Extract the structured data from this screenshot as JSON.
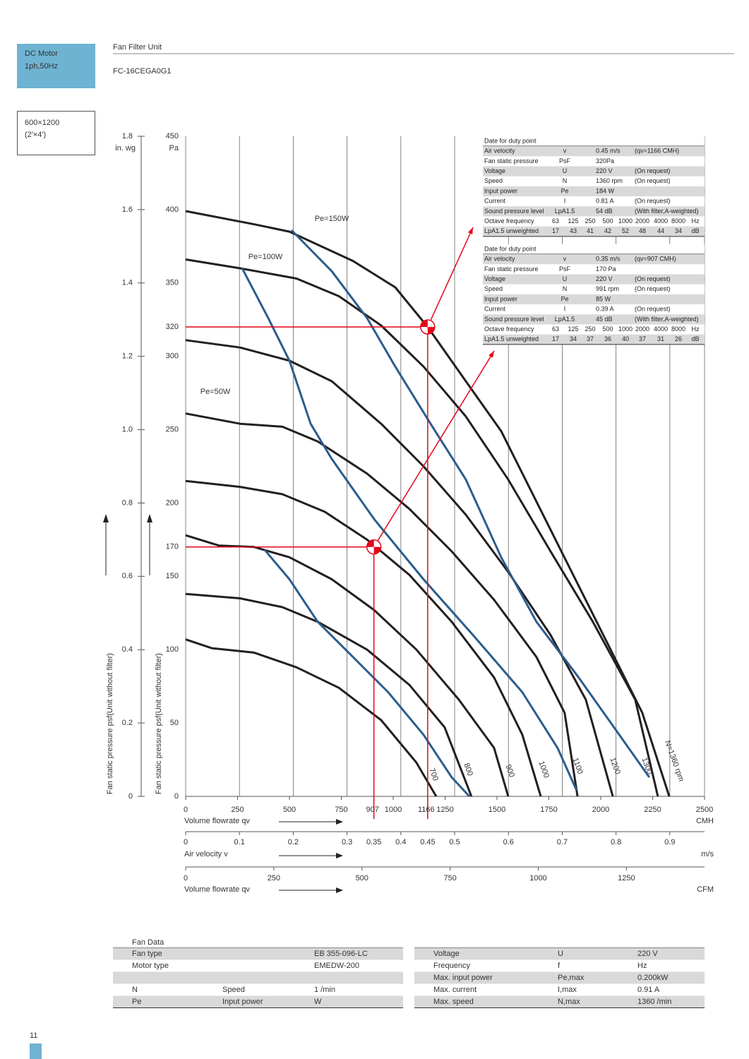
{
  "header": {
    "badge": [
      "DC Motor",
      "1ph,50Hz"
    ],
    "category": "Fan Filter Unit",
    "model": "FC-16CEGA0G1",
    "size": [
      "600×1200",
      "(2'×4')"
    ]
  },
  "chart_data": {
    "type": "line",
    "x_label": "Volume flowrate qv",
    "x_unit": "CMH",
    "xlim": [
      0,
      2500
    ],
    "xticks": [
      0,
      250,
      500,
      750,
      1000,
      1250,
      1500,
      1750,
      2000,
      2250,
      2500
    ],
    "x2_label": "Air velocity v",
    "x2_unit": "m/s",
    "x2lim": [
      0,
      0.9645
    ],
    "x2ticks": [
      0,
      0.1,
      0.2,
      0.3,
      0.4,
      0.5,
      0.6,
      0.7,
      0.8,
      0.9
    ],
    "x3_label": "Volume flowrate qv",
    "x3_unit": "CFM",
    "x3lim": [
      0,
      1471.5
    ],
    "x3ticks": [
      0,
      250,
      500,
      750,
      1000,
      1250
    ],
    "y_label": "Fan static pressure psf(Unit without filter)",
    "y_unit": "Pa",
    "ylim": [
      0,
      450
    ],
    "yticks": [
      0,
      50,
      100,
      150,
      200,
      250,
      300,
      350,
      400,
      450
    ],
    "y2_label": "Fan static pressure psf(Unit without filter)",
    "y2_unit": "in. wg",
    "y2lim": [
      0,
      1.8
    ],
    "y2ticks": [
      0,
      0.2,
      0.4,
      0.6,
      0.8,
      {
        "value": 1,
        "label": "1.0"
      },
      1.2,
      1.4,
      1.6,
      1.8
    ],
    "grid": true,
    "series": [
      {
        "name": "700",
        "color": "#231f20",
        "x": [
          0,
          126,
          330,
          534,
          738,
          942,
          1112,
          1207
        ],
        "values": [
          107,
          101,
          98,
          88,
          74,
          52,
          23,
          0
        ]
      },
      {
        "name": "800",
        "color": "#231f20",
        "x": [
          0,
          262,
          466,
          636,
          874,
          1078,
          1248,
          1377
        ],
        "values": [
          138,
          135,
          129,
          119,
          100,
          76,
          47,
          0
        ]
      },
      {
        "name": "900",
        "color": "#231f20",
        "x": [
          0,
          160,
          330,
          500,
          704,
          908,
          1112,
          1316,
          1486,
          1554
        ],
        "values": [
          178,
          171,
          170,
          163,
          148,
          127,
          100,
          66,
          33,
          0
        ]
      },
      {
        "name": "1000",
        "color": "#231f20",
        "x": [
          0,
          262,
          466,
          670,
          874,
          1078,
          1282,
          1486,
          1622,
          1711
        ],
        "values": [
          215,
          211,
          206,
          194,
          175,
          151,
          119,
          81,
          42,
          0
        ]
      },
      {
        "name": "1100",
        "color": "#231f20",
        "x": [
          0,
          262,
          466,
          636,
          874,
          1078,
          1282,
          1486,
          1690,
          1826,
          1888
        ],
        "values": [
          261,
          254,
          252,
          242,
          220,
          196,
          167,
          134,
          95,
          57,
          0
        ]
      },
      {
        "name": "1200",
        "color": "#231f20",
        "x": [
          0,
          262,
          500,
          704,
          942,
          1146,
          1350,
          1554,
          1758,
          1928,
          2058
        ],
        "values": [
          311,
          306,
          297,
          283,
          254,
          225,
          192,
          153,
          110,
          66,
          0
        ]
      },
      {
        "name": "1300",
        "color": "#231f20",
        "x": [
          0,
          262,
          534,
          738,
          942,
          1146,
          1350,
          1554,
          1758,
          1962,
          2166,
          2275
        ],
        "values": [
          366,
          360,
          353,
          341,
          321,
          293,
          259,
          216,
          167,
          119,
          66,
          0
        ]
      },
      {
        "name": "N=1360 rpm",
        "color": "#231f20",
        "x": [
          0,
          330,
          500,
          806,
          1010,
          1166,
          1350,
          1520,
          1690,
          1860,
          2030,
          2200,
          2330
        ],
        "values": [
          399,
          390,
          385,
          365,
          347,
          320,
          283,
          249,
          201,
          153,
          105,
          57,
          0
        ]
      },
      {
        "name": "Pe=150W",
        "color": "#2c5d8c",
        "x": [
          510,
          704,
          874,
          1010,
          1180,
          1350,
          1520,
          1690,
          1894,
          2064,
          2234
        ],
        "values": [
          386,
          358,
          326,
          293,
          254,
          216,
          163,
          119,
          81,
          47,
          13
        ]
      },
      {
        "name": "Pe=100W",
        "color": "#2c5d8c",
        "x": [
          272,
          398,
          500,
          602,
          704,
          908,
          1146,
          1384,
          1622,
          1792,
          1884
        ],
        "values": [
          360,
          326,
          297,
          254,
          230,
          189,
          148,
          110,
          71,
          33,
          4
        ]
      },
      {
        "name": "Pe=50W",
        "color": "#2c5d8c",
        "x": [
          381,
          500,
          636,
          806,
          976,
          1146,
          1282,
          1367
        ],
        "values": [
          168,
          148,
          119,
          95,
          71,
          42,
          13,
          0
        ]
      }
    ],
    "duty_points": {
      "color": "#e3061a",
      "points": [
        {
          "x": 1166,
          "y": 320,
          "velocity": 0.45
        },
        {
          "x": 907,
          "y": 170,
          "velocity": 0.35
        }
      ]
    }
  },
  "duty_tables": [
    {
      "title": "Date for duty point",
      "rows": [
        [
          "Air velocity",
          "v",
          "0.45 m/s",
          "(qv=1166 CMH)"
        ],
        [
          "Fan static pressure",
          "PsF",
          "320Pa"
        ],
        [
          "Voltage",
          "U",
          "220 V",
          "(On request)"
        ],
        [
          "Speed",
          "N",
          "1360 rpm",
          "(On request)"
        ],
        [
          "Input power",
          "Pe",
          "184 W"
        ],
        [
          "Current",
          "I",
          "0.81 A",
          "(On request)"
        ],
        [
          "Sound pressure level",
          "LpA1.5",
          "54 dB",
          "(With filter,A-weighted)"
        ]
      ],
      "octave_rows": [
        [
          "Octave frequency",
          "63",
          "125",
          "250",
          "500",
          "1000",
          "2000",
          "4000",
          "8000",
          "Hz"
        ],
        [
          "LpA1.5 unweighted",
          "17",
          "43",
          "41",
          "42",
          "52",
          "48",
          "44",
          "34",
          "dB"
        ]
      ]
    },
    {
      "title": "Date for duty point",
      "rows": [
        [
          "Air velocity",
          "v",
          "0.35 m/s",
          "(qv=907 CMH)"
        ],
        [
          "Fan static pressure",
          "PsF",
          "170 Pa"
        ],
        [
          "Voltage",
          "U",
          "220 V",
          "(On request)"
        ],
        [
          "Speed",
          "N",
          "991 rpm",
          "(On request)"
        ],
        [
          "Input power",
          "Pe",
          "85 W"
        ],
        [
          "Current",
          "I",
          "0.39 A",
          "(On request)"
        ],
        [
          "Sound pressure level",
          "LpA1.5",
          "45 dB",
          "(With filter,A-weighted)"
        ]
      ],
      "octave_rows": [
        [
          "Octave frequency",
          "63",
          "125",
          "250",
          "500",
          "1000",
          "2000",
          "4000",
          "8000",
          "Hz"
        ],
        [
          "LpA1.5 unweighted",
          "17",
          "34",
          "37",
          "36",
          "40",
          "37",
          "31",
          "26",
          "dB"
        ]
      ]
    }
  ],
  "fan_data": {
    "title": "Fan Data",
    "left_rows": [
      [
        "Fan type",
        null,
        "EB 355-096-LC"
      ],
      [
        "Motor type",
        null,
        "EMEDW-200"
      ],
      [
        "N",
        "Speed",
        "1 /min"
      ],
      [
        "Pe",
        "Input power",
        "W"
      ]
    ],
    "right_rows": [
      [
        "Voltage",
        "U",
        "220 V"
      ],
      [
        "Frequency",
        "f",
        "Hz"
      ],
      [
        "Max. input power",
        "Pe,max",
        "0.200kW"
      ],
      [
        "Max. current",
        "I,max",
        "0.91 A"
      ],
      [
        "Max. speed",
        "N,max",
        "1360 /min"
      ]
    ]
  },
  "page_number": "11"
}
